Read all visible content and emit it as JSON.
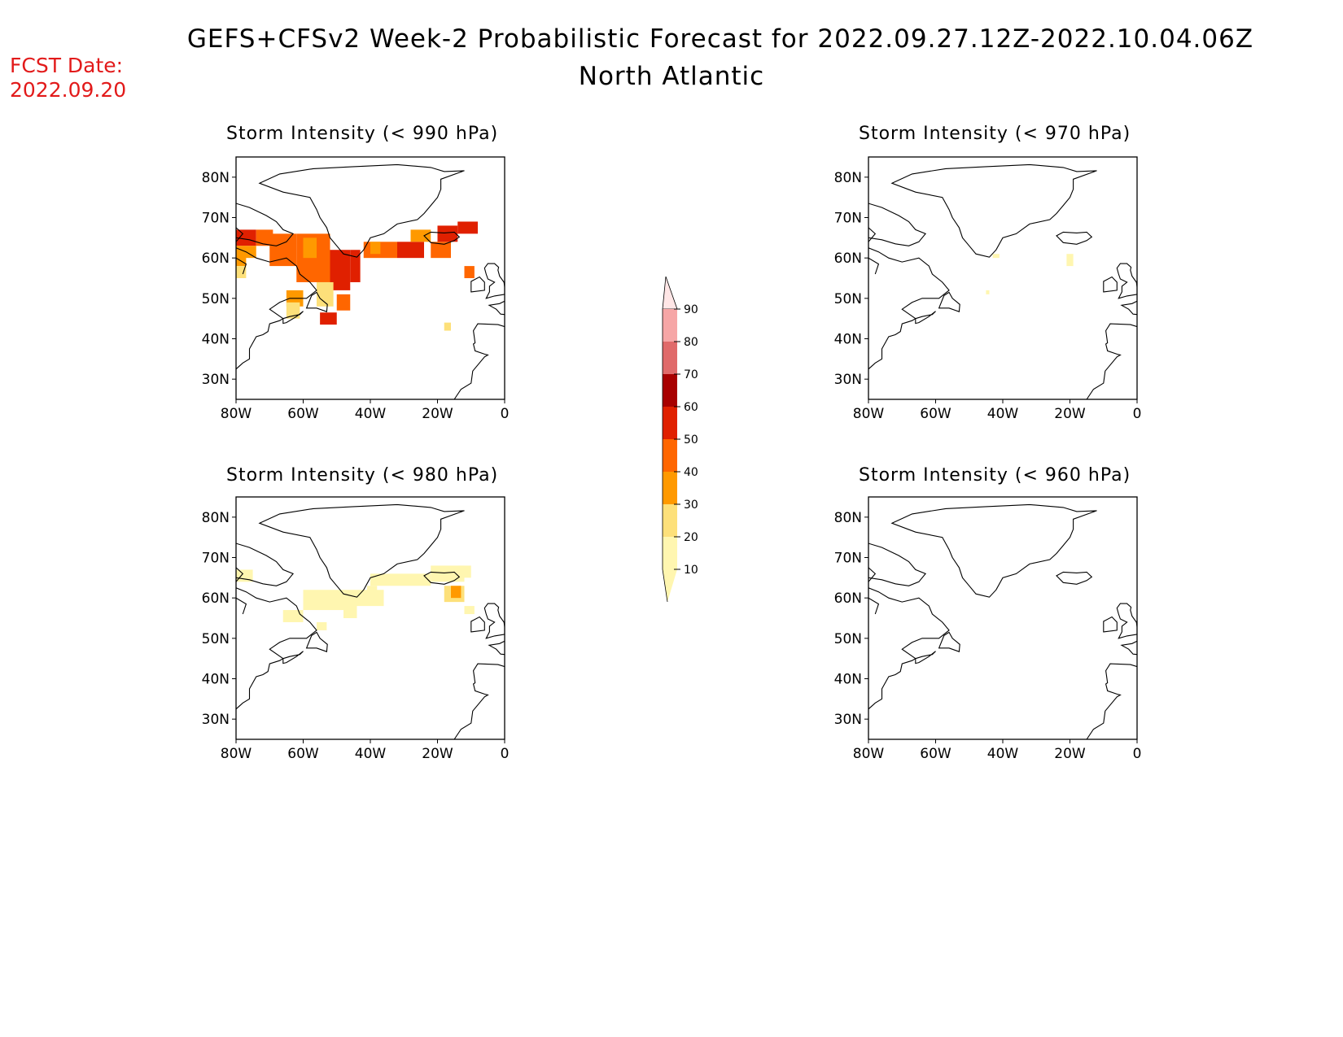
{
  "header": {
    "title": "GEFS+CFSv2 Week-2 Probabilistic Forecast for 2022.09.27.12Z-2022.10.04.06Z",
    "region": "North Atlantic",
    "fcst_label": "FCST Date:",
    "fcst_date": "2022.09.20"
  },
  "axes": {
    "lat_labels": [
      "80N",
      "70N",
      "60N",
      "50N",
      "40N",
      "30N"
    ],
    "lon_labels": [
      "80W",
      "60W",
      "40W",
      "20W",
      "0"
    ]
  },
  "panels": [
    {
      "id": "p990",
      "title": "Storm Intensity (< 990 hPa)",
      "threshold_hPa": 990
    },
    {
      "id": "p970",
      "title": "Storm Intensity (< 970 hPa)",
      "threshold_hPa": 970
    },
    {
      "id": "p980",
      "title": "Storm Intensity (< 980 hPa)",
      "threshold_hPa": 980
    },
    {
      "id": "p960",
      "title": "Storm Intensity (< 960 hPa)",
      "threshold_hPa": 960
    }
  ],
  "colorbar": {
    "labels": [
      "90",
      "80",
      "70",
      "60",
      "50",
      "40",
      "30",
      "20",
      "10"
    ],
    "colors": [
      "#f6a6a6",
      "#e06a6a",
      "#a80000",
      "#e02000",
      "#ff6600",
      "#ff9900",
      "#fde07a",
      "#fff6b0"
    ],
    "top_color": "#ffe6e6"
  }
}
